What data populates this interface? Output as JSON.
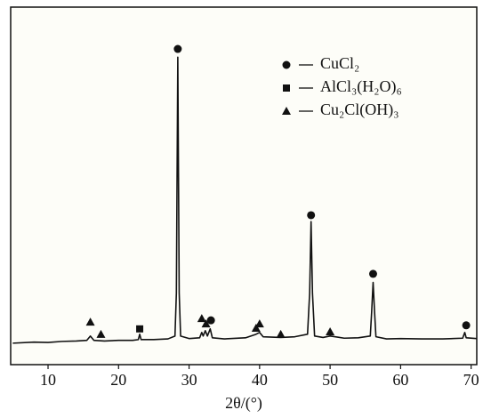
{
  "chart_data": {
    "type": "line",
    "x_label": "2θ/(°)",
    "xlim": [
      4.7,
      70.8
    ],
    "xticks": [
      10,
      20,
      30,
      40,
      50,
      60,
      70
    ],
    "ylim": [
      0,
      100
    ],
    "color": "#111111",
    "legend": "top-right",
    "x": [
      5,
      8,
      10,
      12,
      14,
      15.5,
      16,
      16.5,
      18,
      20,
      22,
      22.8,
      23,
      23.2,
      25,
      27,
      28,
      28.2,
      28.4,
      28.6,
      28.8,
      30,
      31.5,
      31.8,
      32,
      32.3,
      32.6,
      33,
      33.3,
      35,
      38,
      39.5,
      40,
      40.5,
      43,
      45,
      46.8,
      47.1,
      47.3,
      47.5,
      47.8,
      49,
      50,
      52,
      54,
      55.7,
      55.9,
      56.1,
      56.3,
      56.5,
      58,
      60,
      63,
      66,
      68.8,
      69.1,
      69.3,
      70.8
    ],
    "values": [
      6,
      6.3,
      6.2,
      6.5,
      6.6,
      6.8,
      8,
      6.8,
      6.6,
      6.8,
      6.8,
      7,
      8.5,
      7,
      7,
      7.2,
      8,
      20,
      86,
      20,
      8,
      7.3,
      7.5,
      9,
      8,
      9.5,
      8,
      10,
      7.5,
      7.2,
      7.5,
      8.5,
      9,
      7.8,
      7.6,
      7.8,
      8.5,
      20,
      40,
      20,
      8,
      7.6,
      8,
      7.4,
      7.5,
      8,
      15,
      23,
      15,
      7.8,
      7.2,
      7.3,
      7.2,
      7.2,
      7.4,
      9,
      7.5,
      7.3
    ],
    "series": [
      {
        "name": "CuCl₂",
        "marker": "circle",
        "x": [
          28.4,
          33.1,
          47.3,
          56.1,
          69.3
        ],
        "values": [
          88.3,
          12.4,
          41.8,
          25.4,
          11
        ]
      },
      {
        "name": "AlCl₃(H₂O)₆",
        "marker": "square",
        "x": [
          23.0
        ],
        "values": [
          10
        ]
      },
      {
        "name": "Cu₂Cl(OH)₃",
        "marker": "triangle",
        "x": [
          16.0,
          17.5,
          31.8,
          32.4,
          39.5,
          40.0,
          43.0,
          50.0
        ],
        "values": [
          11.9,
          8.5,
          12.9,
          11.4,
          10.2,
          11.4,
          8.5,
          9.2
        ]
      }
    ]
  }
}
